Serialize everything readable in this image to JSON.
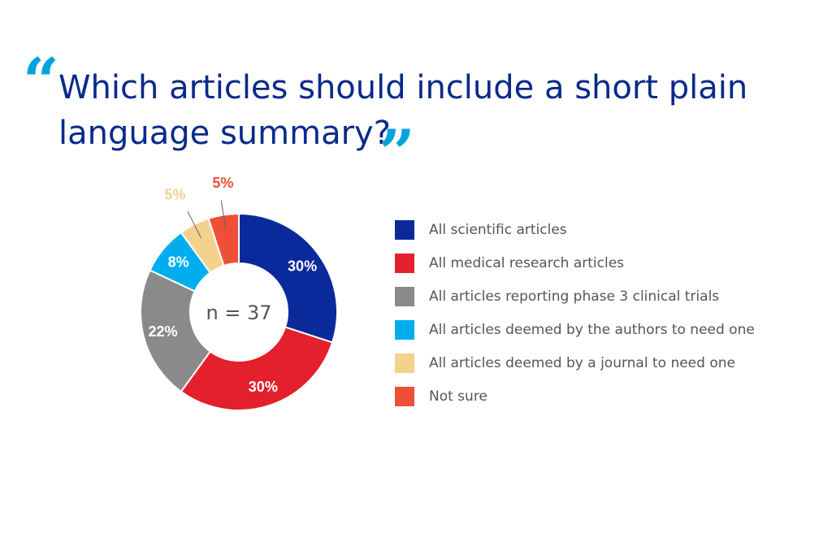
{
  "quote_marks": {
    "open": "“",
    "close": "”"
  },
  "title": "Which articles should include a short plain language summary?",
  "chart_data": {
    "type": "pie",
    "donut": true,
    "center_label": "n = 37",
    "unit": "%",
    "slices": [
      {
        "label": "All scientific articles",
        "value": 30,
        "display": "30%",
        "color": "#0a2a9c",
        "label_color": "#ffffff",
        "outside": false
      },
      {
        "label": "All medical research articles",
        "value": 30,
        "display": "30%",
        "color": "#e3202b",
        "label_color": "#ffffff",
        "outside": false
      },
      {
        "label": "All articles reporting phase 3 clinical trials",
        "value": 22,
        "display": "22%",
        "color": "#8a8a8a",
        "label_color": "#ffffff",
        "outside": false
      },
      {
        "label": "All articles deemed by the authors to need one",
        "value": 8,
        "display": "8%",
        "color": "#00aeef",
        "label_color": "#ffffff",
        "outside": false
      },
      {
        "label": "All articles deemed by a journal to need one",
        "value": 5,
        "display": "5%",
        "color": "#f2d28c",
        "label_color": "#f2d28c",
        "outside": true
      },
      {
        "label": "Not sure",
        "value": 5,
        "display": "5%",
        "color": "#ef4e37",
        "label_color": "#ef4e37",
        "outside": true
      }
    ],
    "legend_position": "right"
  }
}
